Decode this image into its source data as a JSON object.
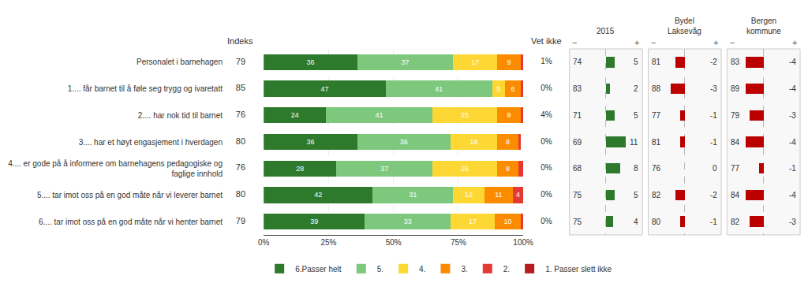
{
  "chart_data": [
    {
      "type": "bar",
      "orientation": "horizontal",
      "stacked": true,
      "categories": [
        "Personalet i barnehagen",
        "1.... får barnet til å føle seg trygg og ivaretatt",
        "2.... har nok tid til barnet",
        "3.... har et høyt engasjement i hverdagen",
        "4.... er gode på å informere om barnehagens pedagogiske og faglige innhold",
        "5.... tar imot oss på en god måte når vi leverer barnet",
        "6.... tar imot oss på en god måte når vi henter barnet"
      ],
      "series": [
        {
          "name": "6.Passer helt",
          "color": "#2d7a2d",
          "values": [
            36,
            47,
            24,
            36,
            28,
            42,
            39
          ],
          "value_labels": [
            "36",
            "47",
            "24",
            "36",
            "28",
            "42",
            "39"
          ]
        },
        {
          "name": "5.",
          "color": "#7dc87d",
          "values": [
            37,
            41,
            41,
            36,
            37,
            31,
            33
          ],
          "value_labels": [
            "37",
            "41",
            "41",
            "36",
            "37",
            "31",
            "33"
          ]
        },
        {
          "name": "4.",
          "color": "#fdd835",
          "values": [
            17,
            5,
            25,
            18,
            25,
            12,
            17
          ],
          "value_labels": [
            "17",
            "5",
            "25",
            "18",
            "25",
            "12",
            "17"
          ]
        },
        {
          "name": "3.",
          "color": "#fb8c00",
          "values": [
            9,
            6,
            9,
            8,
            8,
            11,
            10
          ],
          "value_labels": [
            "9",
            "6",
            "9",
            "8",
            "8",
            "11",
            "10"
          ]
        },
        {
          "name": "2.",
          "color": "#e53935",
          "values": [
            1,
            1,
            1,
            1,
            2,
            4,
            1
          ],
          "value_labels": [
            null,
            null,
            null,
            null,
            null,
            "4",
            null
          ]
        },
        {
          "name": "1. Passer slett ikke",
          "color": "#b71c1c",
          "values": [
            0,
            0,
            0,
            0,
            0,
            0,
            0
          ],
          "value_labels": [
            null,
            null,
            null,
            null,
            null,
            null,
            null
          ]
        }
      ],
      "xlim": [
        0,
        100
      ],
      "xticks": [
        {
          "value": 0,
          "label": "0%"
        },
        {
          "value": 25,
          "label": "25%"
        },
        {
          "value": 50,
          "label": "50%"
        },
        {
          "value": 75,
          "label": "75%"
        },
        {
          "value": 100,
          "label": "100%"
        }
      ],
      "grid": true,
      "data_labels": true,
      "legend": "bottom",
      "indeks": {
        "title": "Indeks",
        "values": [
          79,
          85,
          76,
          80,
          76,
          80,
          79
        ]
      },
      "vet_ikke": {
        "title": "Vet ikke",
        "values": [
          1,
          0,
          4,
          0,
          0,
          0,
          0
        ],
        "value_labels": [
          "1%",
          "0%",
          "4%",
          "0%",
          "0%",
          "0%",
          "0%"
        ]
      }
    },
    {
      "type": "bar",
      "orientation": "horizontal",
      "title": "2015",
      "categories": [
        "Personalet i barnehagen",
        "1.... får barnet til å føle seg trygg og ivaretatt",
        "2.... har nok tid til barnet",
        "3.... har et høyt engasjement i hverdagen",
        "4.... er gode på å informere om barnehagens pedagogiske og faglige innhold",
        "5.... tar imot oss på en god måte når vi leverer barnet",
        "6.... tar imot oss på en god måte når vi henter barnet"
      ],
      "values": [
        5,
        2,
        5,
        11,
        8,
        5,
        4
      ],
      "colors": [
        "#2d7a2d",
        "#2d7a2d",
        "#2d7a2d",
        "#2d7a2d",
        "#2d7a2d",
        "#2d7a2d",
        "#2d7a2d"
      ],
      "indeks": [
        74,
        83,
        71,
        69,
        68,
        75,
        75
      ],
      "xlim": [
        -20,
        20
      ],
      "xticks": [
        0
      ],
      "grid": true,
      "tick_labels": false,
      "data_labels": true,
      "annotations": [
        "−",
        "+"
      ]
    },
    {
      "type": "bar",
      "orientation": "horizontal",
      "title": "Bydel\nLaksevåg",
      "categories": [
        "Personalet i barnehagen",
        "1.... får barnet til å føle seg trygg og ivaretatt",
        "2.... har nok tid til barnet",
        "3.... har et høyt engasjement i hverdagen",
        "4.... er gode på å informere om barnehagens pedagogiske og faglige innhold",
        "5.... tar imot oss på en god måte når vi leverer barnet",
        "6.... tar imot oss på en god måte når vi henter barnet"
      ],
      "values": [
        -2,
        -3,
        -1,
        -1,
        0,
        -2,
        -1
      ],
      "colors": [
        "#bb0000",
        "#bb0000",
        "#bb0000",
        "#bb0000",
        "#bb0000",
        "#bb0000",
        "#bb0000"
      ],
      "indeks": [
        81,
        88,
        77,
        81,
        76,
        82,
        80
      ],
      "xlim": [
        -8,
        8
      ],
      "xticks": [
        0
      ],
      "grid": true,
      "tick_labels": false,
      "data_labels": true,
      "annotations": [
        "−",
        "+"
      ]
    },
    {
      "type": "bar",
      "orientation": "horizontal",
      "title": "Bergen\nkommune",
      "categories": [
        "Personalet i barnehagen",
        "1.... får barnet til å føle seg trygg og ivaretatt",
        "2.... har nok tid til barnet",
        "3.... har et høyt engasjement i hverdagen",
        "4.... er gode på å informere om barnehagens pedagogiske og faglige innhold",
        "5.... tar imot oss på en god måte når vi leverer barnet",
        "6.... tar imot oss på en god måte når vi henter barnet"
      ],
      "values": [
        -4,
        -4,
        -3,
        -4,
        -1,
        -4,
        -3
      ],
      "colors": [
        "#bb0000",
        "#bb0000",
        "#bb0000",
        "#bb0000",
        "#bb0000",
        "#bb0000",
        "#bb0000"
      ],
      "indeks": [
        83,
        89,
        79,
        84,
        77,
        84,
        82
      ],
      "xlim": [
        -8,
        8
      ],
      "xticks": [
        0
      ],
      "grid": true,
      "tick_labels": false,
      "data_labels": true,
      "annotations": [
        "−",
        "+"
      ]
    }
  ]
}
